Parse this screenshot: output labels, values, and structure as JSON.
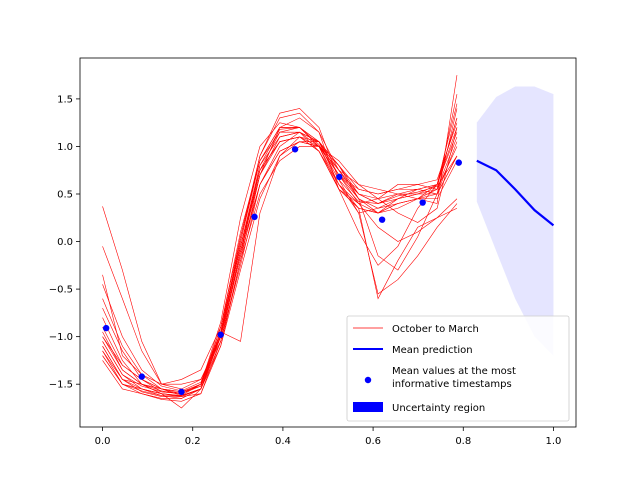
{
  "chart_data": {
    "type": "line",
    "title": "",
    "xlabel": "",
    "ylabel": "",
    "xlim": [
      -0.05,
      1.05
    ],
    "ylim": [
      -1.95,
      1.93
    ],
    "xticks": [
      0.0,
      0.2,
      0.4,
      0.6,
      0.8,
      1.0
    ],
    "xtick_labels": [
      "0.0",
      "0.2",
      "0.4",
      "0.6",
      "0.8",
      "1.0"
    ],
    "yticks": [
      -1.5,
      -1.0,
      -0.5,
      0.0,
      0.5,
      1.0,
      1.5
    ],
    "ytick_labels": [
      "−1.5",
      "−1.0",
      "−0.5",
      "0.0",
      "0.5",
      "1.0",
      "1.5"
    ],
    "grid": false,
    "legend_position": "lower right",
    "legend": [
      {
        "label": "October to March",
        "marker": "thin-line",
        "color": "#ff0000"
      },
      {
        "label": "Mean prediction",
        "marker": "thick-line",
        "color": "#0000ff"
      },
      {
        "label": "Mean values at the most\ninformative timestamps",
        "marker": "dot",
        "color": "#0000ff"
      },
      {
        "label": "Uncertainty region",
        "marker": "patch",
        "color": "#0000ff"
      }
    ],
    "series": [
      {
        "name": "October to March",
        "color": "#ff0000",
        "x": [
          0.0,
          0.044,
          0.087,
          0.131,
          0.175,
          0.218,
          0.262,
          0.306,
          0.349,
          0.393,
          0.437,
          0.48,
          0.524,
          0.568,
          0.611,
          0.655,
          0.699,
          0.742,
          0.786
        ],
        "base": [
          -1.1,
          -1.45,
          -1.47,
          -1.58,
          -1.6,
          -1.55,
          -0.95,
          -0.05,
          0.75,
          1.1,
          1.13,
          0.98,
          0.62,
          0.35,
          0.33,
          0.42,
          0.5,
          0.55,
          1.1
        ],
        "curves": [
          [
            0.37,
            -0.3,
            -1.05,
            -1.5,
            -1.45,
            -1.35,
            -0.9,
            0.1,
            0.85,
            1.2,
            1.2,
            1.0,
            0.7,
            0.45,
            0.3,
            0.45,
            0.55,
            0.6,
            1.2
          ],
          [
            -0.05,
            -0.6,
            -1.15,
            -1.5,
            -1.55,
            -1.45,
            -1.0,
            -0.1,
            0.6,
            1.0,
            1.15,
            1.05,
            0.75,
            0.5,
            0.4,
            0.5,
            0.55,
            0.5,
            0.9
          ],
          [
            -0.35,
            -1.2,
            -1.4,
            -1.55,
            -1.62,
            -1.55,
            -1.1,
            -0.3,
            0.45,
            0.9,
            1.1,
            1.05,
            0.8,
            0.45,
            -0.15,
            -0.3,
            0.05,
            0.5,
            1.4
          ],
          [
            -0.45,
            -1.0,
            -1.35,
            -1.52,
            -1.57,
            -1.48,
            -0.95,
            0.0,
            0.9,
            1.35,
            1.4,
            1.2,
            0.65,
            0.3,
            0.35,
            0.45,
            0.5,
            0.5,
            1.05
          ],
          [
            -0.6,
            -1.1,
            -1.4,
            -1.5,
            -1.5,
            -1.45,
            -1.05,
            -0.2,
            0.7,
            1.2,
            1.3,
            1.15,
            0.75,
            0.6,
            0.55,
            0.5,
            0.45,
            0.6,
            1.3
          ],
          [
            -0.7,
            -1.15,
            -1.45,
            -1.58,
            -1.6,
            -1.5,
            -0.85,
            0.25,
            1.0,
            1.25,
            1.2,
            1.0,
            0.6,
            0.4,
            0.3,
            0.4,
            0.45,
            0.45,
            0.85
          ],
          [
            -0.8,
            -1.25,
            -1.5,
            -1.6,
            -1.62,
            -1.55,
            -1.0,
            -0.15,
            0.8,
            1.1,
            1.15,
            1.05,
            0.7,
            0.5,
            0.45,
            0.5,
            0.5,
            0.55,
            1.0
          ],
          [
            -0.9,
            -1.3,
            -1.45,
            -1.55,
            -1.58,
            -1.52,
            -0.9,
            -0.05,
            0.75,
            1.05,
            1.1,
            0.95,
            0.55,
            0.1,
            -0.25,
            -0.05,
            0.35,
            0.6,
            1.15
          ],
          [
            -1.0,
            -1.35,
            -1.5,
            -1.6,
            -1.63,
            -1.55,
            -1.05,
            -0.25,
            0.6,
            0.95,
            1.05,
            1.0,
            0.8,
            0.55,
            0.5,
            0.55,
            0.55,
            0.6,
            1.45
          ],
          [
            -1.05,
            -1.4,
            -1.55,
            -1.62,
            -1.65,
            -1.55,
            -0.95,
            0.0,
            0.85,
            1.15,
            1.15,
            0.95,
            0.55,
            0.35,
            0.3,
            0.35,
            0.45,
            0.5,
            0.9
          ],
          [
            -1.1,
            -1.45,
            -1.58,
            -1.63,
            -1.63,
            -1.6,
            -1.1,
            -0.2,
            0.5,
            0.85,
            1.0,
            1.0,
            0.85,
            0.6,
            0.45,
            0.3,
            0.2,
            0.35,
            1.2
          ],
          [
            -1.15,
            -1.5,
            -1.6,
            -1.65,
            -1.65,
            -1.55,
            -0.95,
            -0.05,
            0.7,
            1.05,
            1.1,
            1.0,
            0.7,
            0.4,
            0.15,
            0.0,
            0.1,
            0.25,
            0.45
          ],
          [
            -1.2,
            -1.5,
            -1.57,
            -1.62,
            -1.62,
            -1.5,
            -1.0,
            0.05,
            0.9,
            1.3,
            1.35,
            1.15,
            0.55,
            0.4,
            0.45,
            0.6,
            0.6,
            0.65,
            1.25
          ],
          [
            -1.25,
            -1.55,
            -1.6,
            -1.66,
            -1.68,
            -1.6,
            -1.05,
            -0.1,
            0.75,
            1.05,
            1.1,
            0.95,
            0.6,
            0.3,
            -0.55,
            -0.4,
            -0.15,
            0.15,
            0.4
          ],
          [
            -1.0,
            -1.3,
            -1.45,
            -1.55,
            -1.6,
            -1.5,
            -0.9,
            0.05,
            0.85,
            1.2,
            1.2,
            1.05,
            0.7,
            0.55,
            0.5,
            0.55,
            0.6,
            0.55,
            1.1
          ],
          [
            -0.95,
            -1.35,
            -1.5,
            -1.55,
            -1.58,
            -1.5,
            -0.95,
            -1.05,
            0.3,
            0.9,
            1.05,
            1.05,
            0.8,
            0.5,
            0.4,
            0.45,
            0.5,
            0.6,
            1.3
          ],
          [
            -1.15,
            -1.45,
            -1.55,
            -1.6,
            -1.75,
            -1.55,
            -1.0,
            -0.15,
            0.6,
            0.95,
            1.05,
            1.0,
            0.75,
            0.45,
            0.35,
            0.4,
            0.45,
            0.55,
            1.55
          ],
          [
            -1.05,
            -1.4,
            -1.52,
            -1.58,
            -1.6,
            -1.5,
            -0.95,
            -0.05,
            0.75,
            1.15,
            1.2,
            1.05,
            0.6,
            0.35,
            -0.6,
            -0.2,
            0.15,
            0.25,
            0.35
          ],
          [
            -1.2,
            -1.5,
            -1.55,
            -1.6,
            -1.62,
            -1.55,
            -1.0,
            -0.1,
            0.7,
            1.1,
            1.15,
            1.0,
            0.55,
            0.35,
            0.3,
            0.4,
            0.45,
            0.4,
            1.75
          ],
          [
            -1.1,
            -1.45,
            -1.5,
            -1.57,
            -1.6,
            -1.52,
            -0.98,
            -0.05,
            0.8,
            1.18,
            1.2,
            1.02,
            0.65,
            0.42,
            0.4,
            0.48,
            0.52,
            0.58,
            0.9
          ]
        ]
      },
      {
        "name": "Mean values at the most informative timestamps",
        "color": "#0000ff",
        "x": [
          0.008,
          0.087,
          0.175,
          0.262,
          0.337,
          0.427,
          0.525,
          0.62,
          0.71,
          0.79
        ],
        "y": [
          -0.91,
          -1.42,
          -1.58,
          -0.98,
          0.26,
          0.97,
          0.68,
          0.23,
          0.41,
          0.83
        ]
      },
      {
        "name": "Mean prediction",
        "color": "#0000ff",
        "x": [
          0.83,
          0.873,
          0.915,
          0.958,
          1.0
        ],
        "y": [
          0.85,
          0.75,
          0.55,
          0.33,
          0.17
        ]
      },
      {
        "name": "Uncertainty region",
        "color": "#0000ff",
        "x": [
          0.83,
          0.873,
          0.915,
          0.958,
          1.0
        ],
        "upper": [
          1.25,
          1.52,
          1.63,
          1.63,
          1.55
        ],
        "lower": [
          0.42,
          -0.1,
          -0.6,
          -1.0,
          -1.2
        ]
      }
    ]
  }
}
